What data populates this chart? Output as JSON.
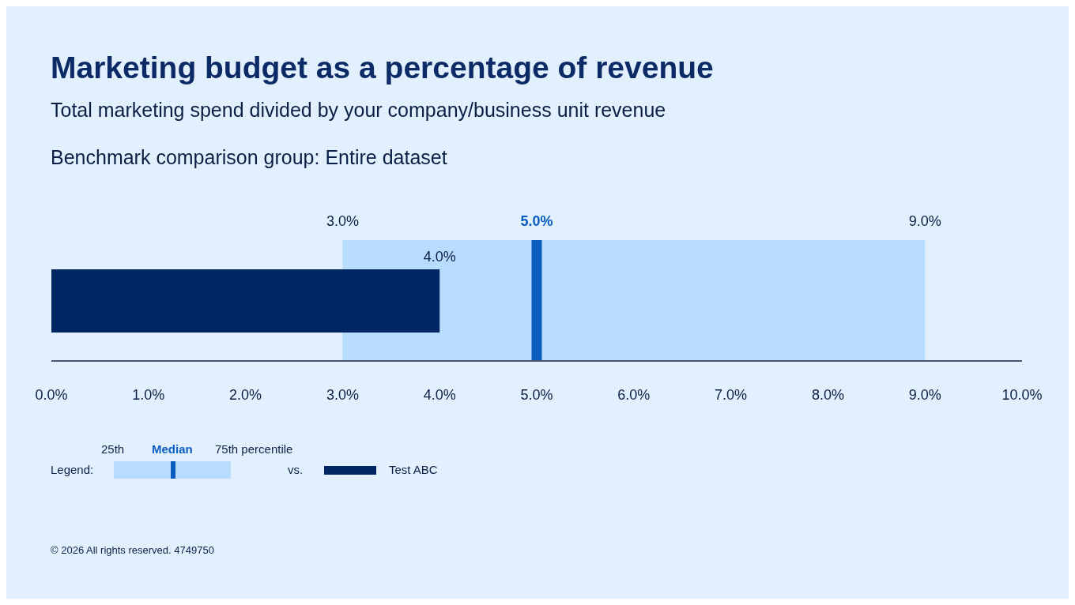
{
  "chart_data": {
    "type": "bar",
    "orientation": "horizontal",
    "title": "Marketing budget as a percentage of revenue",
    "subtitle": "Total marketing spend divided by your company/business unit revenue",
    "categories": [
      null
    ],
    "series": [
      {
        "name": "Test ABC",
        "color": "#002663",
        "values": [
          4.0
        ],
        "value_labels": [
          "4.0%"
        ]
      }
    ],
    "xlim": [
      0,
      10
    ],
    "xticks": [
      {
        "value": 0,
        "label": "0.0%"
      },
      {
        "value": 1,
        "label": "1.0%"
      },
      {
        "value": 2,
        "label": "2.0%"
      },
      {
        "value": 3,
        "label": "3.0%"
      },
      {
        "value": 4,
        "label": "4.0%"
      },
      {
        "value": 5,
        "label": "5.0%"
      },
      {
        "value": 6,
        "label": "6.0%"
      },
      {
        "value": 7,
        "label": "7.0%"
      },
      {
        "value": 8,
        "label": "8.0%"
      },
      {
        "value": 9,
        "label": "9.0%"
      },
      {
        "value": 10,
        "label": "10.0%"
      }
    ],
    "tick_labels": "x",
    "grid": false,
    "legend": "bottom left",
    "legend_title": "Legend:",
    "bands": [
      {
        "axis": "x",
        "from": 3,
        "to": 9,
        "color": "#b8dcfb"
      }
    ],
    "ref_lines": [
      {
        "axis": "x",
        "value": 5,
        "label": "5.0%",
        "color": "#0a5cbf"
      }
    ],
    "annotations": [
      "Benchmark comparison group: Entire dataset",
      "3.0%",
      "9.0%",
      "25th",
      "Median",
      "75th percentile",
      "vs.",
      "© 2026 All rights reserved. 4749750"
    ]
  }
}
